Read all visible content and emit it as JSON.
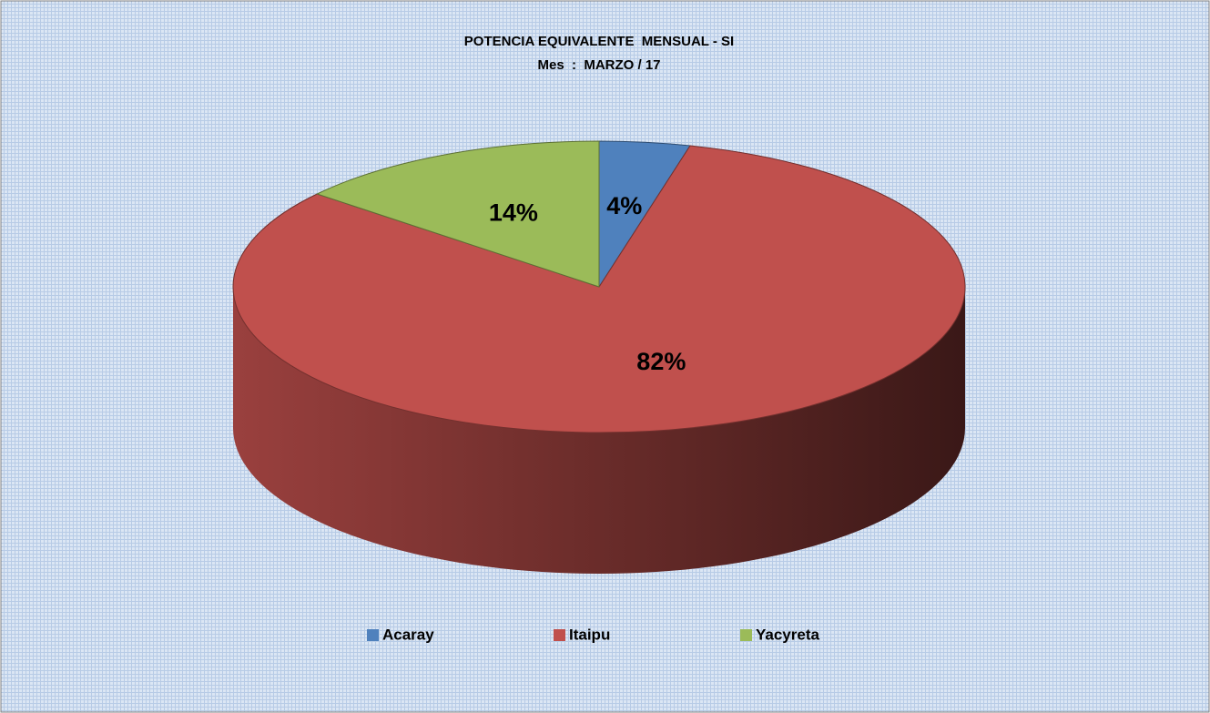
{
  "chart_data": {
    "type": "pie3d",
    "title": "POTENCIA EQUIVALENTE  MENSUAL - SI",
    "subtitle": "Mes  :  MARZO / 17",
    "categories": [
      "Acaray",
      "Itaipu",
      "Yacyreta"
    ],
    "values": [
      4,
      82,
      14
    ],
    "value_labels": [
      "4%",
      "82%",
      "14%"
    ],
    "colors": [
      "#4f81bd",
      "#c0504d",
      "#9bbb59"
    ],
    "legend": "bottom"
  }
}
